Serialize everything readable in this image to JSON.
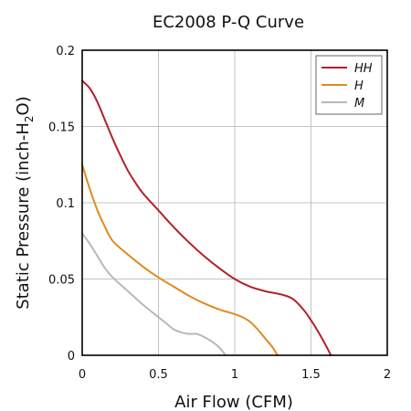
{
  "chart_data": {
    "type": "line",
    "title": "EC2008 P-Q Curve",
    "xlabel": "Air Flow (CFM)",
    "ylabel_parts": [
      "Static Pressure (inch-H",
      "2",
      "O)"
    ],
    "xlim": [
      0,
      2
    ],
    "ylim": [
      0,
      0.2
    ],
    "x_ticks": [
      {
        "value": 0,
        "label": "0"
      },
      {
        "value": 0.5,
        "label": "0.5"
      },
      {
        "value": 1,
        "label": "1"
      },
      {
        "value": 1.5,
        "label": "1.5"
      },
      {
        "value": 2,
        "label": "2"
      }
    ],
    "y_ticks": [
      {
        "value": 0,
        "label": "0"
      },
      {
        "value": 0.05,
        "label": "0.05"
      },
      {
        "value": 0.1,
        "label": "0.1"
      },
      {
        "value": 0.15,
        "label": "0.15"
      },
      {
        "value": 0.2,
        "label": "0.2"
      }
    ],
    "grid": true,
    "legend_position": "top-right",
    "series": [
      {
        "name": "HH",
        "color": "#b3202a",
        "points": [
          [
            0,
            0.18
          ],
          [
            0.05,
            0.175
          ],
          [
            0.1,
            0.166
          ],
          [
            0.15,
            0.154
          ],
          [
            0.2,
            0.142
          ],
          [
            0.25,
            0.131
          ],
          [
            0.3,
            0.121
          ],
          [
            0.35,
            0.113
          ],
          [
            0.4,
            0.106
          ],
          [
            0.5,
            0.095
          ],
          [
            0.6,
            0.084
          ],
          [
            0.7,
            0.074
          ],
          [
            0.8,
            0.065
          ],
          [
            0.9,
            0.057
          ],
          [
            1.0,
            0.05
          ],
          [
            1.1,
            0.045
          ],
          [
            1.2,
            0.042
          ],
          [
            1.3,
            0.04
          ],
          [
            1.38,
            0.037
          ],
          [
            1.45,
            0.03
          ],
          [
            1.5,
            0.023
          ],
          [
            1.55,
            0.015
          ],
          [
            1.6,
            0.006
          ],
          [
            1.63,
            0.0
          ]
        ]
      },
      {
        "name": "H",
        "color": "#e08a1e",
        "points": [
          [
            0,
            0.125
          ],
          [
            0.05,
            0.109
          ],
          [
            0.1,
            0.095
          ],
          [
            0.15,
            0.084
          ],
          [
            0.2,
            0.075
          ],
          [
            0.3,
            0.066
          ],
          [
            0.4,
            0.058
          ],
          [
            0.5,
            0.051
          ],
          [
            0.6,
            0.045
          ],
          [
            0.7,
            0.039
          ],
          [
            0.8,
            0.034
          ],
          [
            0.9,
            0.03
          ],
          [
            1.0,
            0.027
          ],
          [
            1.05,
            0.025
          ],
          [
            1.1,
            0.022
          ],
          [
            1.15,
            0.017
          ],
          [
            1.2,
            0.011
          ],
          [
            1.25,
            0.005
          ],
          [
            1.28,
            0.0
          ]
        ]
      },
      {
        "name": "M",
        "color": "#b8b8b8",
        "points": [
          [
            0,
            0.08
          ],
          [
            0.05,
            0.073
          ],
          [
            0.1,
            0.065
          ],
          [
            0.15,
            0.057
          ],
          [
            0.2,
            0.051
          ],
          [
            0.3,
            0.042
          ],
          [
            0.4,
            0.033
          ],
          [
            0.5,
            0.025
          ],
          [
            0.55,
            0.021
          ],
          [
            0.6,
            0.017
          ],
          [
            0.65,
            0.015
          ],
          [
            0.7,
            0.014
          ],
          [
            0.75,
            0.014
          ],
          [
            0.8,
            0.012
          ],
          [
            0.85,
            0.009
          ],
          [
            0.9,
            0.005
          ],
          [
            0.94,
            0.0
          ]
        ]
      }
    ]
  }
}
